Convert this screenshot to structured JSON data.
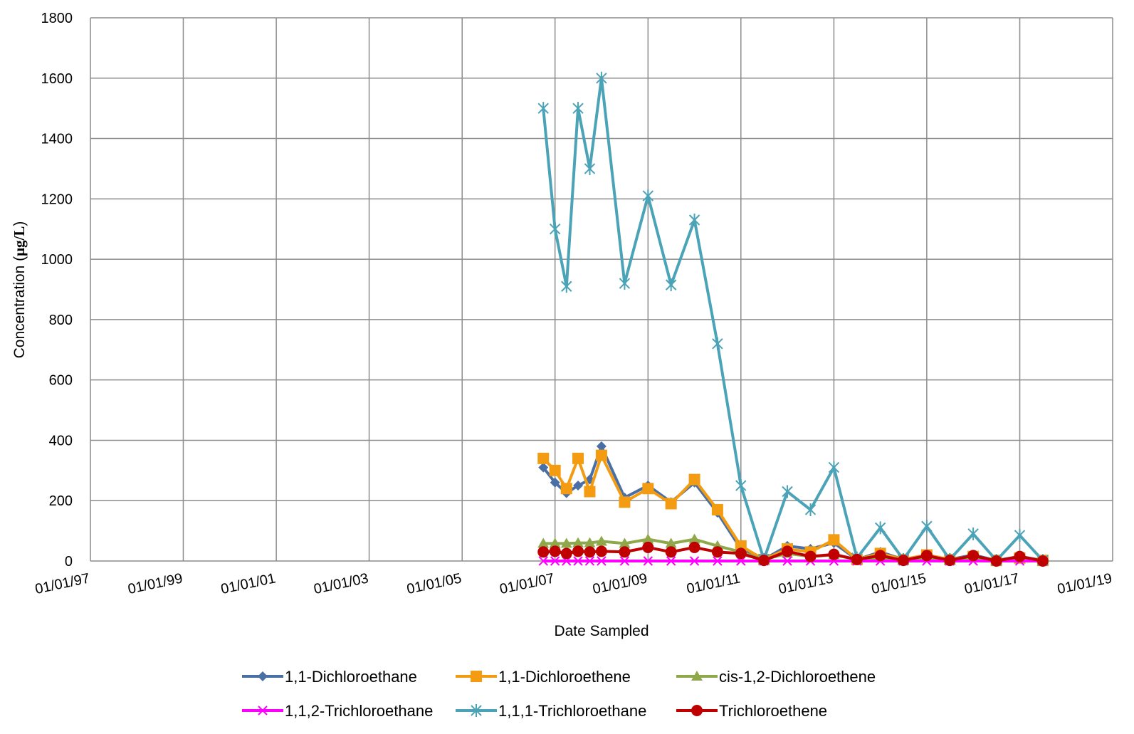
{
  "chart_data": {
    "type": "line",
    "title": "",
    "xlabel": "Date Sampled",
    "ylabel": {
      "prefix": "Concentration (",
      "unit": "μg/L",
      "suffix": ")"
    },
    "ylim": [
      0,
      1800
    ],
    "yticks": [
      0,
      200,
      400,
      600,
      800,
      1000,
      1200,
      1400,
      1600,
      1800
    ],
    "xlim": [
      "1997-01-01",
      "2019-01-01"
    ],
    "xtick_dates": [
      "1997-01-01",
      "1999-01-01",
      "2001-01-01",
      "2003-01-01",
      "2005-01-01",
      "2007-01-01",
      "2009-01-01",
      "2011-01-01",
      "2013-01-01",
      "2015-01-01",
      "2017-01-01",
      "2019-01-01"
    ],
    "xtick_labels": [
      "01/01/97",
      "01/01/99",
      "01/01/01",
      "01/01/03",
      "01/01/05",
      "01/01/07",
      "01/01/09",
      "01/01/11",
      "01/01/13",
      "01/01/15",
      "01/01/17",
      "01/01/19"
    ],
    "grid": true,
    "legend_position": "bottom",
    "series": [
      {
        "name": "1,1-Dichloroethane",
        "color": "#4A6FA5",
        "marker": "diamond",
        "points": [
          [
            "2006-10-01",
            310
          ],
          [
            "2007-01-01",
            260
          ],
          [
            "2007-04-01",
            225
          ],
          [
            "2007-07-01",
            250
          ],
          [
            "2007-10-01",
            270
          ],
          [
            "2008-01-01",
            380
          ],
          [
            "2008-07-01",
            210
          ],
          [
            "2009-01-01",
            250
          ],
          [
            "2009-07-01",
            195
          ],
          [
            "2010-01-01",
            260
          ],
          [
            "2010-07-01",
            160
          ],
          [
            "2011-01-01",
            40
          ],
          [
            "2011-07-01",
            5
          ],
          [
            "2012-01-01",
            50
          ],
          [
            "2012-07-01",
            40
          ],
          [
            "2013-01-01",
            60
          ],
          [
            "2013-07-01",
            5
          ],
          [
            "2014-01-01",
            30
          ],
          [
            "2014-07-01",
            5
          ],
          [
            "2015-01-01",
            20
          ],
          [
            "2015-07-01",
            5
          ],
          [
            "2016-01-01",
            20
          ],
          [
            "2016-07-01",
            2
          ],
          [
            "2017-01-01",
            15
          ],
          [
            "2017-07-01",
            2
          ]
        ]
      },
      {
        "name": "1,1-Dichloroethene",
        "color": "#F39C12",
        "marker": "square",
        "points": [
          [
            "2006-10-01",
            340
          ],
          [
            "2007-01-01",
            300
          ],
          [
            "2007-04-01",
            240
          ],
          [
            "2007-07-01",
            340
          ],
          [
            "2007-10-01",
            230
          ],
          [
            "2008-01-01",
            350
          ],
          [
            "2008-07-01",
            195
          ],
          [
            "2009-01-01",
            240
          ],
          [
            "2009-07-01",
            190
          ],
          [
            "2010-01-01",
            270
          ],
          [
            "2010-07-01",
            170
          ],
          [
            "2011-01-01",
            50
          ],
          [
            "2011-07-01",
            5
          ],
          [
            "2012-01-01",
            40
          ],
          [
            "2012-07-01",
            30
          ],
          [
            "2013-01-01",
            70
          ],
          [
            "2013-07-01",
            5
          ],
          [
            "2014-01-01",
            25
          ],
          [
            "2014-07-01",
            5
          ],
          [
            "2015-01-01",
            20
          ],
          [
            "2015-07-01",
            5
          ],
          [
            "2016-01-01",
            15
          ],
          [
            "2016-07-01",
            2
          ],
          [
            "2017-01-01",
            10
          ],
          [
            "2017-07-01",
            2
          ]
        ]
      },
      {
        "name": "cis-1,2-Dichloroethene",
        "color": "#8FA84A",
        "marker": "triangle",
        "points": [
          [
            "2006-10-01",
            58
          ],
          [
            "2007-01-01",
            58
          ],
          [
            "2007-04-01",
            58
          ],
          [
            "2007-07-01",
            60
          ],
          [
            "2007-10-01",
            60
          ],
          [
            "2008-01-01",
            65
          ],
          [
            "2008-07-01",
            58
          ],
          [
            "2009-01-01",
            72
          ],
          [
            "2009-07-01",
            58
          ],
          [
            "2010-01-01",
            72
          ],
          [
            "2010-07-01",
            50
          ],
          [
            "2011-01-01",
            30
          ],
          [
            "2011-07-01",
            5
          ],
          [
            "2012-01-01",
            25
          ],
          [
            "2012-07-01",
            15
          ],
          [
            "2013-01-01",
            20
          ],
          [
            "2013-07-01",
            5
          ],
          [
            "2014-01-01",
            10
          ],
          [
            "2014-07-01",
            5
          ],
          [
            "2015-01-01",
            10
          ],
          [
            "2015-07-01",
            2
          ],
          [
            "2016-01-01",
            10
          ],
          [
            "2016-07-01",
            2
          ],
          [
            "2017-01-01",
            8
          ],
          [
            "2017-07-01",
            2
          ]
        ]
      },
      {
        "name": "1,1,2-Trichloroethane",
        "color": "#FF00FF",
        "marker": "x",
        "points": [
          [
            "2006-10-01",
            0
          ],
          [
            "2007-01-01",
            0
          ],
          [
            "2007-04-01",
            0
          ],
          [
            "2007-07-01",
            0
          ],
          [
            "2007-10-01",
            0
          ],
          [
            "2008-01-01",
            0
          ],
          [
            "2008-07-01",
            0
          ],
          [
            "2009-01-01",
            0
          ],
          [
            "2009-07-01",
            0
          ],
          [
            "2010-01-01",
            0
          ],
          [
            "2010-07-01",
            0
          ],
          [
            "2011-01-01",
            0
          ],
          [
            "2011-07-01",
            0
          ],
          [
            "2012-01-01",
            0
          ],
          [
            "2012-07-01",
            0
          ],
          [
            "2013-01-01",
            0
          ],
          [
            "2013-07-01",
            0
          ],
          [
            "2014-01-01",
            0
          ],
          [
            "2014-07-01",
            0
          ],
          [
            "2015-01-01",
            0
          ],
          [
            "2015-07-01",
            0
          ],
          [
            "2016-01-01",
            0
          ],
          [
            "2016-07-01",
            0
          ],
          [
            "2017-01-01",
            0
          ],
          [
            "2017-07-01",
            0
          ]
        ]
      },
      {
        "name": "1,1,1-Trichloroethane",
        "color": "#4BA3B8",
        "marker": "star",
        "points": [
          [
            "2006-10-01",
            1500
          ],
          [
            "2007-01-01",
            1100
          ],
          [
            "2007-04-01",
            910
          ],
          [
            "2007-07-01",
            1500
          ],
          [
            "2007-10-01",
            1300
          ],
          [
            "2008-01-01",
            1600
          ],
          [
            "2008-07-01",
            920
          ],
          [
            "2009-01-01",
            1210
          ],
          [
            "2009-07-01",
            915
          ],
          [
            "2010-01-01",
            1130
          ],
          [
            "2010-07-01",
            720
          ],
          [
            "2011-01-01",
            250
          ],
          [
            "2011-07-01",
            5
          ],
          [
            "2012-01-01",
            230
          ],
          [
            "2012-07-01",
            170
          ],
          [
            "2013-01-01",
            310
          ],
          [
            "2013-07-01",
            10
          ],
          [
            "2014-01-01",
            110
          ],
          [
            "2014-07-01",
            5
          ],
          [
            "2015-01-01",
            115
          ],
          [
            "2015-07-01",
            5
          ],
          [
            "2016-01-01",
            90
          ],
          [
            "2016-07-01",
            2
          ],
          [
            "2017-01-01",
            85
          ],
          [
            "2017-07-01",
            2
          ]
        ]
      },
      {
        "name": "Trichloroethene",
        "color": "#C00000",
        "marker": "circle",
        "points": [
          [
            "2006-10-01",
            30
          ],
          [
            "2007-01-01",
            32
          ],
          [
            "2007-04-01",
            25
          ],
          [
            "2007-07-01",
            32
          ],
          [
            "2007-10-01",
            30
          ],
          [
            "2008-01-01",
            32
          ],
          [
            "2008-07-01",
            30
          ],
          [
            "2009-01-01",
            45
          ],
          [
            "2009-07-01",
            30
          ],
          [
            "2010-01-01",
            45
          ],
          [
            "2010-07-01",
            30
          ],
          [
            "2011-01-01",
            25
          ],
          [
            "2011-07-01",
            2
          ],
          [
            "2012-01-01",
            32
          ],
          [
            "2012-07-01",
            15
          ],
          [
            "2013-01-01",
            22
          ],
          [
            "2013-07-01",
            5
          ],
          [
            "2014-01-01",
            18
          ],
          [
            "2014-07-01",
            2
          ],
          [
            "2015-01-01",
            18
          ],
          [
            "2015-07-01",
            2
          ],
          [
            "2016-01-01",
            18
          ],
          [
            "2016-07-01",
            0
          ],
          [
            "2017-01-01",
            15
          ],
          [
            "2017-07-01",
            0
          ]
        ]
      }
    ]
  }
}
